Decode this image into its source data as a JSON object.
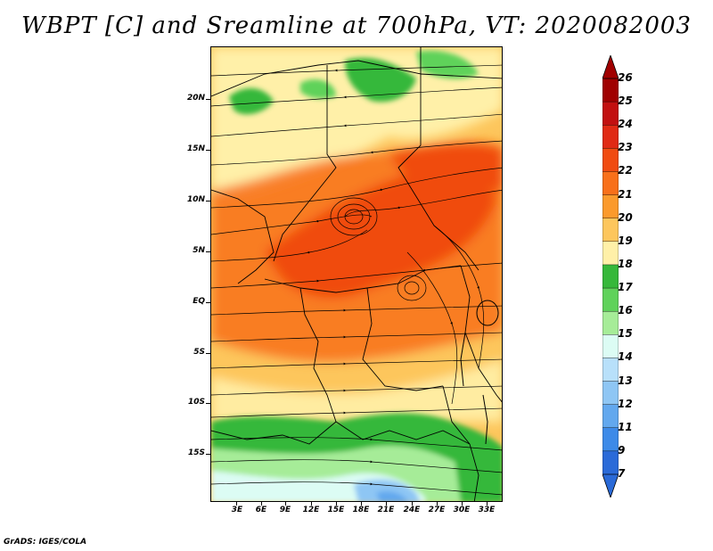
{
  "title": "WBPT [C] and Sreamline at 700hPa, VT: 2020082003",
  "footer": "GrADS: IGES/COLA",
  "map": {
    "lat_labels": [
      "20N",
      "15N",
      "10N",
      "5N",
      "EQ",
      "5S",
      "10S",
      "15S"
    ],
    "lon_labels": [
      "3E",
      "6E",
      "9E",
      "12E",
      "15E",
      "18E",
      "21E",
      "24E",
      "27E",
      "30E",
      "33E"
    ],
    "lat_values": [
      20,
      15,
      10,
      5,
      0,
      -5,
      -10,
      -15
    ],
    "lon_values": [
      3,
      6,
      9,
      12,
      15,
      18,
      21,
      24,
      27,
      30,
      33
    ]
  },
  "colorbar": {
    "labels": [
      "26",
      "25",
      "24",
      "23",
      "22",
      "21",
      "20",
      "19",
      "18",
      "17",
      "16",
      "15",
      "14",
      "13",
      "12",
      "11",
      "9",
      "7"
    ],
    "colors": [
      "#a00000",
      "#c21010",
      "#e02a14",
      "#f04b10",
      "#f8701a",
      "#fb9a2c",
      "#fdc65c",
      "#fff0a8",
      "#36b83a",
      "#5fd25a",
      "#a6ec98",
      "#dcfcf4",
      "#b8e0fa",
      "#8ec6f4",
      "#62a8ee",
      "#3d8ae8",
      "#2a6ad8"
    ],
    "top_arrow_color": "#a00000",
    "bottom_arrow_color": "#2a6ad8"
  }
}
